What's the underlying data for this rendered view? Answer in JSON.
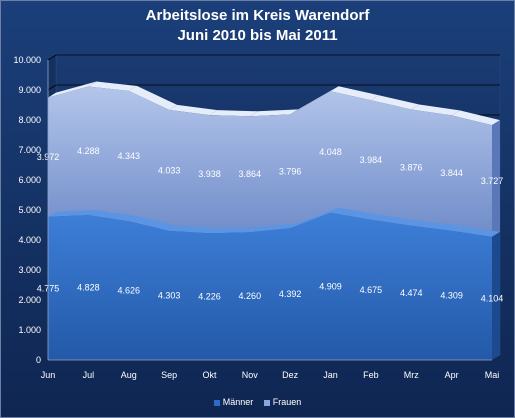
{
  "chart_data": {
    "type": "area",
    "stacked": true,
    "title": "Arbeitslose im Kreis Warendorf",
    "subtitle": "Juni 2010 bis Mai 2011",
    "categories": [
      "Jun",
      "Jul",
      "Aug",
      "Sep",
      "Okt",
      "Nov",
      "Dez",
      "Jan",
      "Feb",
      "Mrz",
      "Apr",
      "Mai"
    ],
    "series": [
      {
        "name": "Männer",
        "color": "#2e6bc6",
        "values": [
          4775,
          4828,
          4626,
          4303,
          4226,
          4260,
          4392,
          4909,
          4675,
          4474,
          4309,
          4104
        ],
        "labels": [
          "4.775",
          "4.828",
          "4.626",
          "4.303",
          "4.226",
          "4.260",
          "4.392",
          "4.909",
          "4.675",
          "4.474",
          "4.309",
          "4.104"
        ]
      },
      {
        "name": "Frauen",
        "color": "#7f9bd4",
        "values": [
          3972,
          4288,
          4343,
          4033,
          3938,
          3864,
          3796,
          4048,
          3984,
          3876,
          3844,
          3727
        ],
        "labels": [
          "3.972",
          "4.288",
          "4.343",
          "4.033",
          "3.938",
          "3.864",
          "3.796",
          "4.048",
          "3.984",
          "3.876",
          "3.844",
          "3.727"
        ]
      }
    ],
    "ylim": [
      0,
      10000
    ],
    "yticks": [
      0,
      1000,
      2000,
      3000,
      4000,
      5000,
      6000,
      7000,
      8000,
      9000,
      10000
    ],
    "ytick_labels": [
      "0",
      "1.000",
      "2.000",
      "3.000",
      "4.000",
      "5.000",
      "6.000",
      "7.000",
      "8.000",
      "9.000",
      "10.000"
    ],
    "grid": true,
    "legend_position": "bottom"
  }
}
